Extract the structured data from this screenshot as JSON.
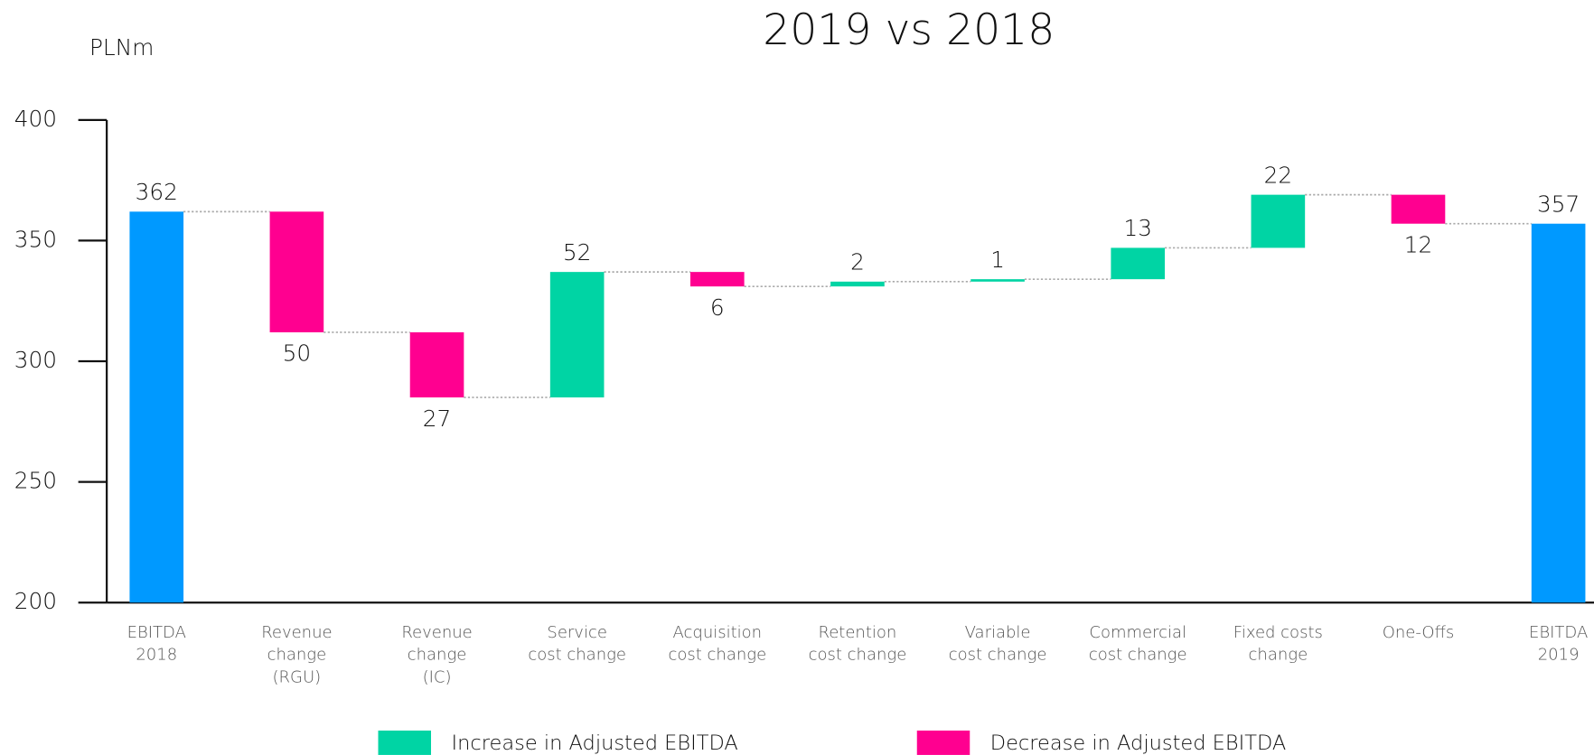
{
  "chart_data": {
    "type": "waterfall",
    "title": "2019 vs 2018",
    "y_label": "PLNm",
    "categories": [
      [
        "EBITDA",
        "2018"
      ],
      [
        "Revenue",
        "change",
        "(RGU)"
      ],
      [
        "Revenue",
        "change",
        "(IC)"
      ],
      [
        "Service",
        "cost change"
      ],
      [
        "Acquisition",
        "cost change"
      ],
      [
        "Retention",
        "cost change"
      ],
      [
        "Variable",
        "cost change"
      ],
      [
        "Commercial",
        "cost change"
      ],
      [
        "Fixed costs",
        "change"
      ],
      [
        "One-Offs"
      ],
      [
        "EBITDA",
        "2019"
      ]
    ],
    "values": [
      362,
      -50,
      -27,
      52,
      -6,
      2,
      1,
      13,
      22,
      -12,
      357
    ],
    "value_labels": [
      "362",
      "50",
      "27",
      "52",
      "6",
      "2",
      "1",
      "13",
      "22",
      "12",
      "357"
    ],
    "measure": [
      "absolute",
      "relative",
      "relative",
      "relative",
      "relative",
      "relative",
      "relative",
      "relative",
      "relative",
      "relative",
      "absolute"
    ],
    "total_color": "#0099ff",
    "legend": [
      {
        "name": "Increase in Adjusted EBITDA",
        "color": "#00d4a4"
      },
      {
        "name": "Decrease in Adjusted EBITDA",
        "color": "#ff0090"
      }
    ],
    "ylim": [
      200,
      400
    ],
    "yticks": [
      200,
      250,
      300,
      350,
      400
    ]
  }
}
